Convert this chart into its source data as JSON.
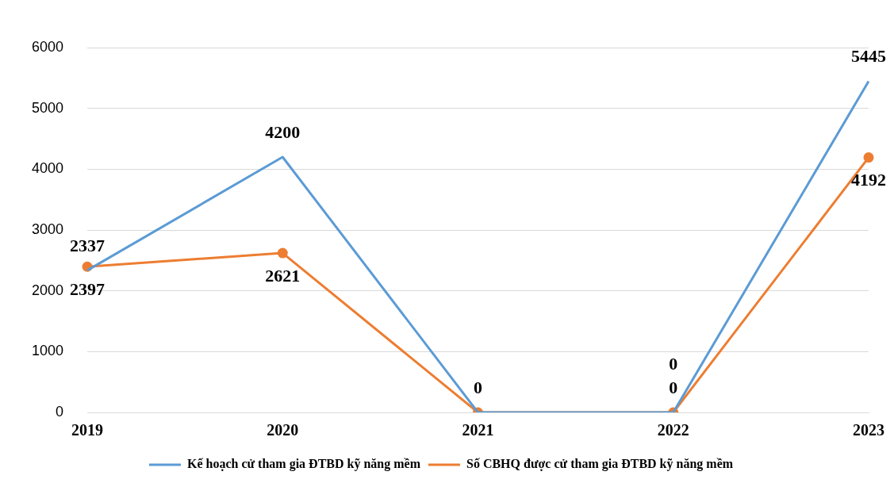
{
  "chart_data": {
    "type": "line",
    "categories": [
      "2019",
      "2020",
      "2021",
      "2022",
      "2023"
    ],
    "series": [
      {
        "name": "Kế hoạch cử tham gia ĐTBD kỹ năng mềm",
        "color": "#5b9bd5",
        "marker": "none",
        "values": [
          2337,
          4200,
          0,
          0,
          5445
        ],
        "value_labels": [
          "2337",
          "4200",
          "0",
          "0",
          "5445"
        ]
      },
      {
        "name": "Số CBHQ được cử tham gia ĐTBD kỹ năng mềm",
        "color": "#ed7d31",
        "marker": "circle",
        "values": [
          2397,
          2621,
          0,
          0,
          4192
        ],
        "value_labels": [
          "2397",
          "2621",
          null,
          "0",
          "4192"
        ]
      }
    ],
    "ylim": [
      0,
      6000
    ],
    "yticks": [
      0,
      1000,
      2000,
      3000,
      4000,
      5000,
      6000
    ],
    "grid": "y",
    "legend": "bottom"
  }
}
